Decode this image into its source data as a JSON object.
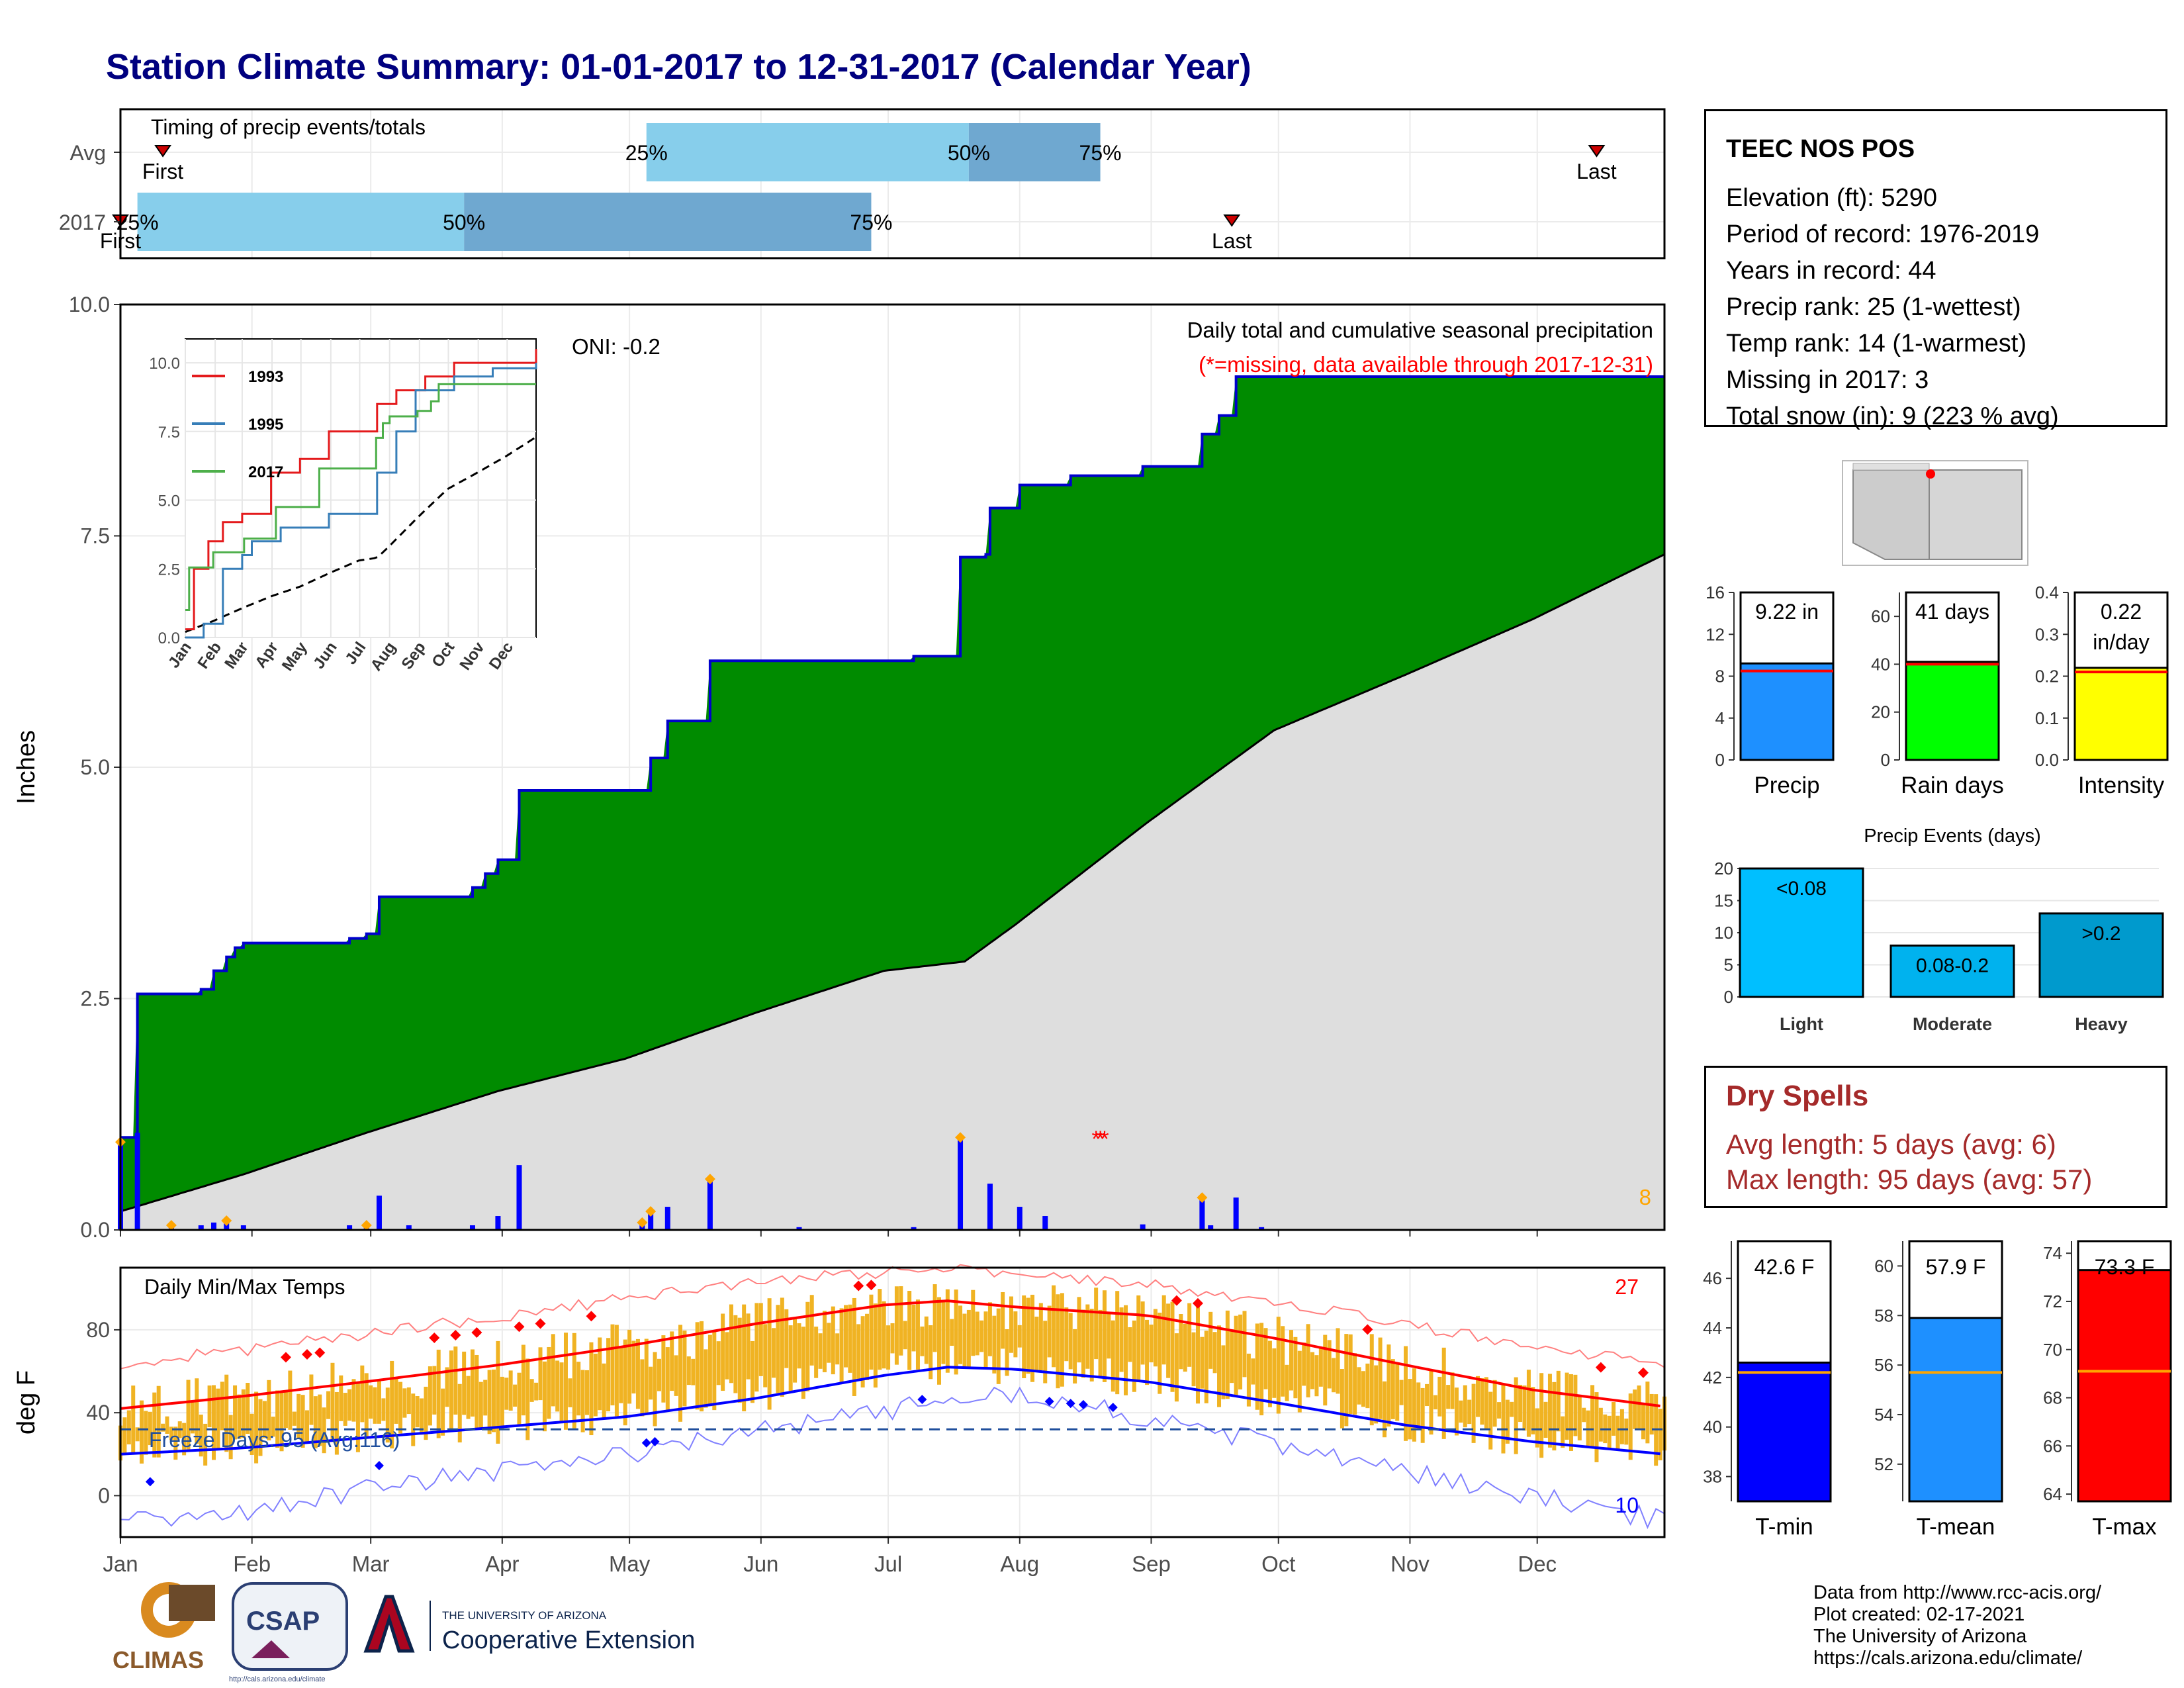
{
  "title": "Station Climate Summary: 01-01-2017 to 12-31-2017 (Calendar Year)",
  "months": [
    "Jan",
    "Feb",
    "Mar",
    "Apr",
    "May",
    "Jun",
    "Jul",
    "Aug",
    "Sep",
    "Oct",
    "Nov",
    "Dec"
  ],
  "timing": {
    "label": "Timing of precip events/totals",
    "rows": [
      "Avg",
      "2017"
    ],
    "first_label": "First",
    "last_label": "Last",
    "avg": {
      "first_doy": 11,
      "p25_doy": 125,
      "p50_doy": 201,
      "p75_doy": 232,
      "last_doy": 349
    },
    "y2017": {
      "first_doy": 1,
      "p25_doy": 5,
      "p50_doy": 82,
      "p75_doy": 178,
      "last_doy": 263
    },
    "pct_labels": [
      "25%",
      "50%",
      "75%"
    ],
    "colors": {
      "light": "#87ceeb",
      "mid": "#6fa8d0",
      "marker": "#cc0000"
    }
  },
  "chart_data": [
    {
      "id": "precip_main",
      "type": "area",
      "ylabel": "Inches",
      "ylim": [
        0,
        10
      ],
      "yticks": [
        0.0,
        2.5,
        5.0,
        7.5,
        10.0
      ],
      "ytick_labels": [
        "0.0",
        "2.5",
        "5.0",
        "7.5",
        "10.0"
      ],
      "legend_title": "Daily total and cumulative seasonal precipitation",
      "missing_note": "(*=missing, data available through 2017-12-31)",
      "oni": "ONI: -0.2",
      "corner_count": "8",
      "colors": {
        "fill_above_avg": "#008b00",
        "cum_line": "#0000cc",
        "avg_fill": "#dedede",
        "daily_bar": "#0000ff",
        "marker": "#ffa500",
        "missing": "#ff0000"
      },
      "cumulative_2017": [
        [
          1,
          1.0
        ],
        [
          5,
          2.55
        ],
        [
          13,
          2.55
        ],
        [
          20,
          2.6
        ],
        [
          23,
          2.8
        ],
        [
          26,
          2.95
        ],
        [
          28,
          3.05
        ],
        [
          30,
          3.1
        ],
        [
          50,
          3.1
        ],
        [
          55,
          3.15
        ],
        [
          59,
          3.2
        ],
        [
          62,
          3.6
        ],
        [
          84,
          3.7
        ],
        [
          87,
          3.85
        ],
        [
          90,
          4.0
        ],
        [
          95,
          4.75
        ],
        [
          124,
          4.75
        ],
        [
          126,
          5.1
        ],
        [
          130,
          5.5
        ],
        [
          140,
          6.15
        ],
        [
          188,
          6.2
        ],
        [
          199,
          7.27
        ],
        [
          205,
          7.3
        ],
        [
          206,
          7.8
        ],
        [
          213,
          8.05
        ],
        [
          225,
          8.15
        ],
        [
          242,
          8.25
        ],
        [
          256,
          8.6
        ],
        [
          260,
          8.8
        ],
        [
          264,
          9.22
        ],
        [
          365,
          9.22
        ]
      ],
      "average_cumulative": [
        [
          1,
          0.2
        ],
        [
          30,
          0.6
        ],
        [
          59,
          1.05
        ],
        [
          90,
          1.5
        ],
        [
          120,
          1.85
        ],
        [
          151,
          2.35
        ],
        [
          181,
          2.8
        ],
        [
          200,
          2.9
        ],
        [
          212,
          3.3
        ],
        [
          243,
          4.4
        ],
        [
          273,
          5.4
        ],
        [
          304,
          6.0
        ],
        [
          334,
          6.6
        ],
        [
          365,
          7.3
        ]
      ],
      "daily_precip": [
        [
          1,
          0.95
        ],
        [
          5,
          1.05
        ],
        [
          13,
          0.05
        ],
        [
          20,
          0.05
        ],
        [
          23,
          0.08
        ],
        [
          26,
          0.1
        ],
        [
          30,
          0.05
        ],
        [
          55,
          0.05
        ],
        [
          59,
          0.05
        ],
        [
          62,
          0.37
        ],
        [
          69,
          0.05
        ],
        [
          84,
          0.05
        ],
        [
          90,
          0.15
        ],
        [
          95,
          0.7
        ],
        [
          124,
          0.08
        ],
        [
          126,
          0.2
        ],
        [
          130,
          0.25
        ],
        [
          140,
          0.55
        ],
        [
          161,
          0.03
        ],
        [
          188,
          0.03
        ],
        [
          199,
          1.0
        ],
        [
          206,
          0.5
        ],
        [
          213,
          0.25
        ],
        [
          219,
          0.15
        ],
        [
          242,
          0.06
        ],
        [
          256,
          0.35
        ],
        [
          258,
          0.05
        ],
        [
          264,
          0.35
        ],
        [
          270,
          0.03
        ]
      ],
      "orange_markers_doy": [
        1,
        13,
        26,
        59,
        124,
        126,
        140,
        199,
        256
      ],
      "missing_markers_doy": [
        231,
        232,
        233
      ]
    },
    {
      "id": "precip_inset",
      "type": "line",
      "ylim": [
        0,
        10
      ],
      "yticks": [
        0.0,
        2.5,
        5.0,
        7.5,
        10.0
      ],
      "ytick_labels": [
        "0.0",
        "2.5",
        "5.0",
        "7.5",
        "10.0"
      ],
      "series": [
        {
          "name": "1993",
          "color": "#e41a1c",
          "points": [
            [
              1,
              0.3
            ],
            [
              10,
              2.5
            ],
            [
              25,
              3.5
            ],
            [
              40,
              4.2
            ],
            [
              60,
              4.5
            ],
            [
              90,
              6.0
            ],
            [
              120,
              6.5
            ],
            [
              150,
              7.5
            ],
            [
              190,
              7.5
            ],
            [
              200,
              8.5
            ],
            [
              220,
              9.0
            ],
            [
              250,
              9.5
            ],
            [
              280,
              10.0
            ],
            [
              365,
              10.5
            ]
          ]
        },
        {
          "name": "1995",
          "color": "#377eb8",
          "points": [
            [
              1,
              0.0
            ],
            [
              20,
              0.5
            ],
            [
              40,
              2.5
            ],
            [
              55,
              2.5
            ],
            [
              60,
              3.0
            ],
            [
              70,
              3.5
            ],
            [
              100,
              4.0
            ],
            [
              150,
              4.5
            ],
            [
              190,
              4.5
            ],
            [
              200,
              6.0
            ],
            [
              220,
              7.5
            ],
            [
              240,
              9.0
            ],
            [
              280,
              9.5
            ],
            [
              320,
              9.8
            ],
            [
              365,
              10.0
            ]
          ]
        },
        {
          "name": "2017",
          "color": "#4daf4a",
          "points": [
            [
              1,
              1.0
            ],
            [
              5,
              2.55
            ],
            [
              30,
              3.1
            ],
            [
              62,
              3.6
            ],
            [
              95,
              4.75
            ],
            [
              140,
              6.15
            ],
            [
              199,
              7.27
            ],
            [
              206,
              7.8
            ],
            [
              213,
              8.05
            ],
            [
              242,
              8.25
            ],
            [
              256,
              8.6
            ],
            [
              264,
              9.22
            ],
            [
              365,
              9.22
            ]
          ]
        }
      ],
      "average_points": [
        [
          1,
          0.2
        ],
        [
          30,
          0.6
        ],
        [
          59,
          1.05
        ],
        [
          90,
          1.5
        ],
        [
          120,
          1.85
        ],
        [
          151,
          2.35
        ],
        [
          181,
          2.8
        ],
        [
          200,
          2.9
        ],
        [
          212,
          3.3
        ],
        [
          243,
          4.4
        ],
        [
          273,
          5.4
        ],
        [
          304,
          6.0
        ],
        [
          334,
          6.6
        ],
        [
          365,
          7.3
        ]
      ]
    },
    {
      "id": "temps",
      "type": "bar",
      "ylabel": "deg F",
      "label": "Daily Min/Max Temps",
      "ylim": [
        -20,
        110
      ],
      "yticks": [
        0,
        40,
        80
      ],
      "ytick_labels": [
        "0",
        "40",
        "80"
      ],
      "freeze_label": "Freeze Days: 95 (Avg:116)",
      "freeze_line": 32,
      "record_high_count": "27",
      "record_low_count": "10",
      "colors": {
        "bars": "#f0b323",
        "avg_max": "#ff0000",
        "avg_min": "#0000ff",
        "rec_max": "#ff8080",
        "rec_min": "#8080ff",
        "freeze": "#1f4e9c"
      },
      "avg_max_points": [
        [
          1,
          42
        ],
        [
          30,
          48
        ],
        [
          59,
          55
        ],
        [
          90,
          63
        ],
        [
          120,
          72
        ],
        [
          151,
          83
        ],
        [
          181,
          92
        ],
        [
          196,
          94
        ],
        [
          212,
          91
        ],
        [
          243,
          87
        ],
        [
          273,
          76
        ],
        [
          304,
          63
        ],
        [
          334,
          51
        ],
        [
          365,
          43
        ]
      ],
      "avg_min_points": [
        [
          1,
          20
        ],
        [
          30,
          23
        ],
        [
          59,
          28
        ],
        [
          90,
          33
        ],
        [
          120,
          38
        ],
        [
          151,
          47
        ],
        [
          181,
          58
        ],
        [
          196,
          62
        ],
        [
          212,
          61
        ],
        [
          243,
          55
        ],
        [
          273,
          45
        ],
        [
          304,
          34
        ],
        [
          334,
          26
        ],
        [
          365,
          20
        ]
      ],
      "rec_max_points": [
        [
          1,
          64
        ],
        [
          30,
          70
        ],
        [
          59,
          78
        ],
        [
          90,
          86
        ],
        [
          120,
          95
        ],
        [
          151,
          104
        ],
        [
          181,
          108
        ],
        [
          196,
          109
        ],
        [
          212,
          106
        ],
        [
          243,
          102
        ],
        [
          273,
          94
        ],
        [
          304,
          83
        ],
        [
          334,
          72
        ],
        [
          365,
          64
        ]
      ],
      "rec_min_points": [
        [
          1,
          -12
        ],
        [
          30,
          -8
        ],
        [
          59,
          3
        ],
        [
          90,
          12
        ],
        [
          120,
          20
        ],
        [
          151,
          31
        ],
        [
          181,
          40
        ],
        [
          196,
          50
        ],
        [
          212,
          48
        ],
        [
          243,
          38
        ],
        [
          273,
          25
        ],
        [
          304,
          12
        ],
        [
          334,
          0
        ],
        [
          365,
          -12
        ]
      ]
    },
    {
      "id": "precip_bars",
      "type": "bar",
      "categories": [
        "Precip",
        "Rain days",
        "Intensity"
      ],
      "values": [
        9.22,
        41,
        0.22
      ],
      "labels": [
        "9.22 in",
        "41 days",
        "0.22\nin/day"
      ],
      "ylims": [
        [
          0,
          16
        ],
        [
          0,
          70
        ],
        [
          0,
          0.4
        ]
      ],
      "yticks": [
        [
          0,
          4,
          8,
          12,
          16
        ],
        [
          0,
          20,
          40,
          60
        ],
        [
          0.0,
          0.1,
          0.2,
          0.3,
          0.4
        ]
      ],
      "ytick_labels": [
        [
          "0",
          "4",
          "8",
          "12",
          "16"
        ],
        [
          "0",
          "20",
          "40",
          "60"
        ],
        [
          "0.0",
          "0.1",
          "0.2",
          "0.3",
          "0.4"
        ]
      ],
      "averages": [
        8.5,
        40,
        0.21
      ],
      "colors": [
        "#1e90ff",
        "#00ff00",
        "#ffff00"
      ]
    },
    {
      "id": "precip_events",
      "type": "bar",
      "title": "Precip Events (days)",
      "categories": [
        "Light",
        "Moderate",
        "Heavy"
      ],
      "values": [
        20,
        8,
        13
      ],
      "labels": [
        "<0.08",
        "0.08-0.2",
        ">0.2"
      ],
      "ylim": [
        0,
        20
      ],
      "yticks": [
        0,
        5,
        10,
        15,
        20
      ],
      "ytick_labels": [
        "0",
        "5",
        "10",
        "15",
        "20"
      ],
      "colors": [
        "#00bfff",
        "#00b2ee",
        "#009acd"
      ]
    },
    {
      "id": "temp_bars",
      "type": "bar",
      "categories": [
        "T-min",
        "T-mean",
        "T-max"
      ],
      "values": [
        42.6,
        57.9,
        73.3
      ],
      "labels": [
        "42.6 F",
        "57.9 F",
        "73.3 F"
      ],
      "ylims": [
        [
          37,
          47.5
        ],
        [
          50.5,
          61
        ],
        [
          63.7,
          74.5
        ]
      ],
      "yticks": [
        [
          38,
          40,
          42,
          44,
          46
        ],
        [
          52,
          54,
          56,
          58,
          60
        ],
        [
          64,
          66,
          68,
          70,
          72,
          74
        ]
      ],
      "ytick_labels": [
        [
          "38",
          "40",
          "42",
          "44",
          "46"
        ],
        [
          "52",
          "54",
          "56",
          "58",
          "60"
        ],
        [
          "64",
          "66",
          "68",
          "70",
          "72",
          "74"
        ]
      ],
      "averages": [
        42.2,
        55.7,
        69.1
      ],
      "colors": [
        "#0000ff",
        "#1e90ff",
        "#ff0000"
      ]
    }
  ],
  "station": {
    "name": "TEEC NOS POS",
    "lines": [
      "Elevation (ft): 5290",
      "Period of record: 1976-2019",
      "Years in record: 44",
      "Precip rank: 25 (1-wettest)",
      "Temp rank: 14 (1-warmest)",
      "Missing in 2017: 3",
      "Total snow (in): 9 (223 % avg)"
    ]
  },
  "dry_spells": {
    "title": "Dry Spells",
    "avg_line": "Avg length: 5 days (avg: 6)",
    "max_line": "Max length: 95 days (avg: 57)"
  },
  "logos": {
    "climas": "CLIMAS",
    "csap": "CSAP",
    "csap_url": "http://cals.arizona.edu/climate",
    "ua_small": "THE UNIVERSITY OF ARIZONA",
    "ua_big": "Cooperative Extension"
  },
  "credits": [
    "Data from http://www.rcc-acis.org/",
    "Plot created: 02-17-2021",
    "The University of Arizona",
    "https://cals.arizona.edu/climate/"
  ]
}
